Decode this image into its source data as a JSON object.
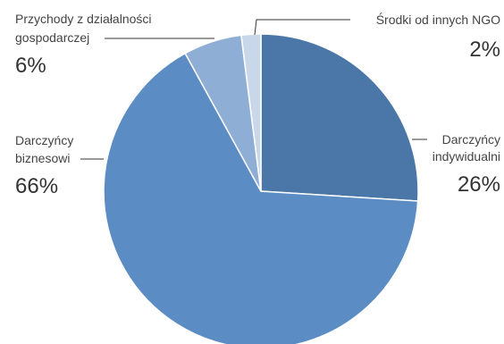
{
  "chart_data": {
    "type": "pie",
    "title": "",
    "slices": [
      {
        "label_lines": [
          "Darczyńcy",
          "indywidualni"
        ],
        "value": 26,
        "value_label": "26%",
        "color": "#4a77a8"
      },
      {
        "label_lines": [
          "Darczyńcy",
          "biznesowi"
        ],
        "value": 66,
        "value_label": "66%",
        "color": "#5b8cc4"
      },
      {
        "label_lines": [
          "Przychody z działalności",
          "gospodarczej"
        ],
        "value": 6,
        "value_label": "6%",
        "color": "#8eaed6"
      },
      {
        "label_lines": [
          "Środki od innych NGO"
        ],
        "value": 2,
        "value_label": "2%",
        "color": "#c9d7ea"
      }
    ]
  }
}
